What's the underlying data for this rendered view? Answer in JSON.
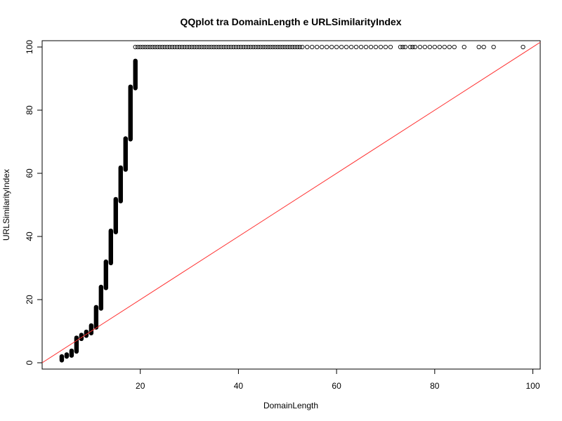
{
  "chart_data": {
    "type": "scatter",
    "title": "QQplot tra DomainLength e URLSimilarityIndex",
    "xlabel": "DomainLength",
    "ylabel": "URLSimilarityIndex",
    "xlim": [
      0,
      101.5
    ],
    "ylim": [
      -2,
      102
    ],
    "x_ticks": [
      20,
      40,
      60,
      80,
      100
    ],
    "y_ticks": [
      0,
      20,
      40,
      60,
      80,
      100
    ],
    "grid": false,
    "legend": "none",
    "point_color": "#000000",
    "reference_line": {
      "slope": 1,
      "intercept": 0,
      "color": "#ff3030"
    },
    "vertical_segments": [
      {
        "x": 4,
        "y_from": 0.8,
        "y_to": 2.0
      },
      {
        "x": 5,
        "y_from": 2.0,
        "y_to": 2.6
      },
      {
        "x": 6,
        "y_from": 2.3,
        "y_to": 3.8
      },
      {
        "x": 7,
        "y_from": 3.6,
        "y_to": 7.9
      },
      {
        "x": 8,
        "y_from": 7.6,
        "y_to": 8.8
      },
      {
        "x": 9,
        "y_from": 8.6,
        "y_to": 9.8
      },
      {
        "x": 10,
        "y_from": 9.4,
        "y_to": 11.8
      },
      {
        "x": 11,
        "y_from": 11.2,
        "y_to": 17.6
      },
      {
        "x": 12,
        "y_from": 17.2,
        "y_to": 24.0
      },
      {
        "x": 13,
        "y_from": 23.7,
        "y_to": 32.0
      },
      {
        "x": 14,
        "y_from": 31.6,
        "y_to": 41.8
      },
      {
        "x": 15,
        "y_from": 41.4,
        "y_to": 51.8
      },
      {
        "x": 16,
        "y_from": 51.2,
        "y_to": 61.8
      },
      {
        "x": 17,
        "y_from": 61.2,
        "y_to": 71.0
      },
      {
        "x": 18,
        "y_from": 70.8,
        "y_to": 87.4
      },
      {
        "x": 19,
        "y_from": 87.0,
        "y_to": 95.6
      }
    ],
    "top_points": {
      "y": 100,
      "x": [
        19,
        19.5,
        20,
        20.5,
        21,
        21.5,
        22,
        22.5,
        23,
        23.5,
        24,
        24.5,
        25,
        25.5,
        26,
        26.5,
        27,
        27.5,
        28,
        28.5,
        29,
        29.5,
        30,
        30.5,
        31,
        31.5,
        32,
        32.5,
        33,
        33.5,
        34,
        34.5,
        35,
        35.5,
        36,
        36.5,
        37,
        37.5,
        38,
        38.5,
        39,
        39.5,
        40,
        40.5,
        41,
        41.5,
        42,
        42.5,
        43,
        43.5,
        44,
        44.5,
        45,
        45.5,
        46,
        46.5,
        47,
        47.5,
        48,
        48.5,
        49,
        49.5,
        50,
        50.5,
        51,
        51.5,
        52,
        52.5,
        53,
        54,
        55,
        56,
        57,
        58,
        59,
        60,
        61,
        62,
        63,
        64,
        65,
        66,
        67,
        68,
        69,
        70,
        71,
        73,
        73.5,
        74,
        75,
        75.5,
        76,
        77,
        78,
        79,
        80,
        81,
        82,
        83,
        84,
        86,
        89,
        90,
        92,
        98
      ]
    }
  }
}
